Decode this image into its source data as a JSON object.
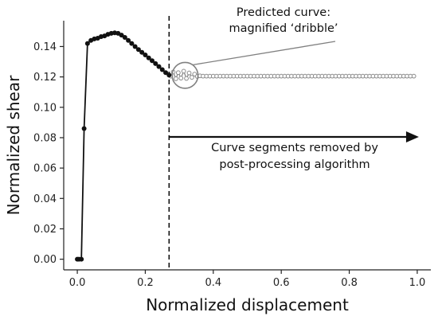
{
  "chart_data": {
    "type": "line",
    "title": "",
    "xlabel": "Normalized displacement",
    "ylabel": "Normalized shear",
    "xlim": [
      -0.04,
      1.04
    ],
    "ylim": [
      -0.007,
      0.157
    ],
    "x_ticks": [
      0.0,
      0.2,
      0.4,
      0.6,
      0.8,
      1.0
    ],
    "x_tick_labels": [
      "0.0",
      "0.2",
      "0.4",
      "0.6",
      "0.8",
      "1.0"
    ],
    "y_ticks": [
      0.0,
      0.02,
      0.04,
      0.06,
      0.08,
      0.1,
      0.12,
      0.14
    ],
    "y_tick_labels": [
      "0.00",
      "0.02",
      "0.04",
      "0.06",
      "0.08",
      "0.10",
      "0.12",
      "0.14"
    ],
    "grid": false,
    "colors": {
      "kept": "#111111",
      "removed": "#8a8a8a",
      "annotation": "#808080"
    },
    "series": [
      {
        "style": "solid-filled-markers",
        "points": [
          [
            0.0,
            0.0
          ],
          [
            0.005,
            0.0
          ],
          [
            0.012,
            0.0
          ],
          [
            0.02,
            0.086
          ],
          [
            0.03,
            0.142
          ],
          [
            0.04,
            0.144
          ],
          [
            0.05,
            0.145
          ],
          [
            0.06,
            0.1455
          ],
          [
            0.07,
            0.1465
          ],
          [
            0.08,
            0.147
          ],
          [
            0.09,
            0.148
          ],
          [
            0.1,
            0.1487
          ],
          [
            0.11,
            0.149
          ],
          [
            0.12,
            0.1487
          ],
          [
            0.13,
            0.1475
          ],
          [
            0.14,
            0.146
          ],
          [
            0.15,
            0.144
          ],
          [
            0.16,
            0.142
          ],
          [
            0.17,
            0.14
          ],
          [
            0.18,
            0.138
          ],
          [
            0.19,
            0.1362
          ],
          [
            0.2,
            0.1345
          ],
          [
            0.21,
            0.1325
          ],
          [
            0.22,
            0.1307
          ],
          [
            0.23,
            0.1288
          ],
          [
            0.24,
            0.1268
          ],
          [
            0.25,
            0.1248
          ],
          [
            0.26,
            0.1228
          ],
          [
            0.27,
            0.1212
          ]
        ]
      },
      {
        "style": "dribble-open-markers",
        "points": [
          [
            0.275,
            0.1205
          ],
          [
            0.282,
            0.1232
          ],
          [
            0.29,
            0.1188
          ],
          [
            0.297,
            0.1228
          ],
          [
            0.305,
            0.1192
          ],
          [
            0.313,
            0.1238
          ],
          [
            0.321,
            0.119
          ],
          [
            0.329,
            0.1226
          ],
          [
            0.337,
            0.1197
          ],
          [
            0.345,
            0.1218
          ],
          [
            0.353,
            0.1203
          ],
          [
            0.361,
            0.1207
          ]
        ]
      },
      {
        "style": "flat-open-markers",
        "x_start": 0.37,
        "x_end": 0.99,
        "x_step": 0.01,
        "y": 0.1205
      }
    ],
    "cutoff_x": 0.27,
    "arrow": {
      "x_start": 0.27,
      "x_end": 1.0,
      "y": 0.0805
    },
    "magnifier": {
      "cx": 0.317,
      "cy": 0.121,
      "r_data_x": 0.038
    },
    "annotations": {
      "predicted_line1": "Predicted curve:",
      "predicted_line2": "magnified ‘dribble’",
      "removed_line1": "Curve segments removed by",
      "removed_line2": "post-processing algorithm"
    }
  }
}
